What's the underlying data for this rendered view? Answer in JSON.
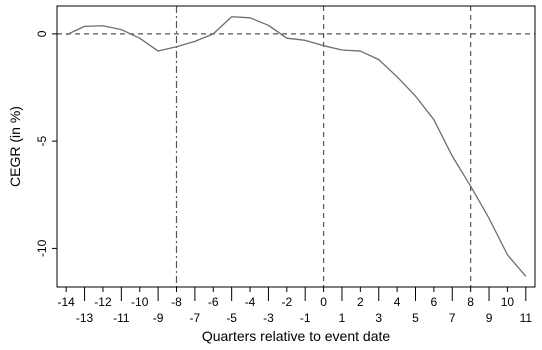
{
  "chart_data": {
    "type": "line",
    "title": "",
    "xlabel": "Quarters relative to event date",
    "ylabel": "CEGR (in %)",
    "xlim": [
      -14.5,
      11.5
    ],
    "ylim": [
      -11.8,
      1.3
    ],
    "x_ticks": [
      -14,
      -13,
      -12,
      -11,
      -10,
      -9,
      -8,
      -7,
      -6,
      -5,
      -4,
      -3,
      -2,
      -1,
      0,
      1,
      2,
      3,
      4,
      5,
      6,
      7,
      8,
      9,
      10,
      11
    ],
    "y_ticks": [
      0,
      -5,
      -10
    ],
    "grid": false,
    "reference_lines": {
      "horizontal": [
        0
      ],
      "vertical_dashed": [
        0,
        8
      ],
      "vertical_dashdot": [
        -8
      ]
    },
    "colors": {
      "series": "#6e6e6e",
      "reference": "#555555",
      "axis": "#000000"
    },
    "series": [
      {
        "x": [
          -14,
          -13,
          -12,
          -11,
          -10,
          -9,
          -8,
          -7,
          -6,
          -5,
          -4,
          -3,
          -2,
          -1,
          0,
          1,
          2,
          3,
          4,
          5,
          6,
          7,
          8,
          9,
          10,
          11
        ],
        "values": [
          -0.05,
          0.35,
          0.38,
          0.2,
          -0.2,
          -0.8,
          -0.6,
          -0.35,
          0.0,
          0.8,
          0.75,
          0.4,
          -0.2,
          -0.3,
          -0.55,
          -0.75,
          -0.8,
          -1.2,
          -2.0,
          -2.9,
          -4.0,
          -5.7,
          -7.1,
          -8.6,
          -10.3,
          -11.3
        ]
      }
    ]
  }
}
